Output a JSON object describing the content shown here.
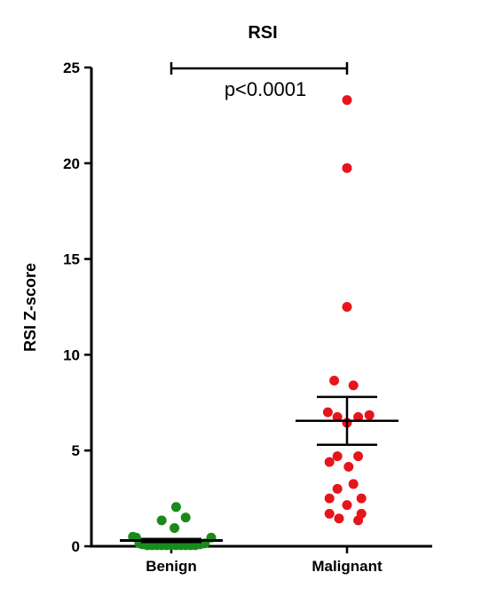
{
  "chart_data": {
    "type": "scatter",
    "title": "RSI",
    "xlabel": "",
    "ylabel": "RSI Z-score",
    "ylim": [
      0,
      25
    ],
    "yticks": [
      0,
      5,
      10,
      15,
      20,
      25
    ],
    "categories": [
      "Benign",
      "Malignant"
    ],
    "grid": false,
    "annotation": "p<0.0001",
    "series": [
      {
        "category": "Benign",
        "color": "#1a8a1a",
        "points": [
          {
            "offset": -0.24,
            "value": 0.5
          },
          {
            "offset": -0.22,
            "value": 0.45
          },
          {
            "offset": -0.2,
            "value": 0.15
          },
          {
            "offset": -0.18,
            "value": 0.1
          },
          {
            "offset": -0.15,
            "value": 0.05
          },
          {
            "offset": -0.12,
            "value": 0.05
          },
          {
            "offset": -0.09,
            "value": 0.05
          },
          {
            "offset": -0.06,
            "value": 0.05
          },
          {
            "offset": -0.03,
            "value": 0.05
          },
          {
            "offset": 0.0,
            "value": 0.05
          },
          {
            "offset": 0.03,
            "value": 0.05
          },
          {
            "offset": 0.06,
            "value": 0.05
          },
          {
            "offset": 0.09,
            "value": 0.05
          },
          {
            "offset": 0.12,
            "value": 0.05
          },
          {
            "offset": 0.15,
            "value": 0.05
          },
          {
            "offset": 0.18,
            "value": 0.1
          },
          {
            "offset": 0.21,
            "value": 0.15
          },
          {
            "offset": 0.25,
            "value": 0.45
          },
          {
            "offset": -0.06,
            "value": 1.35
          },
          {
            "offset": 0.02,
            "value": 0.95
          },
          {
            "offset": 0.03,
            "value": 2.05
          },
          {
            "offset": 0.09,
            "value": 1.5
          }
        ],
        "mean": 0.3,
        "sem_low": 0.22,
        "sem_high": 0.38
      },
      {
        "category": "Malignant",
        "color": "#e8141c",
        "points": [
          {
            "offset": 0.0,
            "value": 23.3
          },
          {
            "offset": 0.0,
            "value": 19.75
          },
          {
            "offset": 0.0,
            "value": 12.5
          },
          {
            "offset": -0.08,
            "value": 8.65
          },
          {
            "offset": 0.04,
            "value": 8.4
          },
          {
            "offset": -0.12,
            "value": 7.0
          },
          {
            "offset": -0.06,
            "value": 6.75
          },
          {
            "offset": 0.0,
            "value": 6.45
          },
          {
            "offset": 0.07,
            "value": 6.75
          },
          {
            "offset": 0.14,
            "value": 6.85
          },
          {
            "offset": -0.06,
            "value": 4.7
          },
          {
            "offset": 0.07,
            "value": 4.7
          },
          {
            "offset": -0.11,
            "value": 4.4
          },
          {
            "offset": 0.01,
            "value": 4.15
          },
          {
            "offset": -0.06,
            "value": 3.0
          },
          {
            "offset": 0.04,
            "value": 3.25
          },
          {
            "offset": -0.11,
            "value": 2.5
          },
          {
            "offset": 0.09,
            "value": 2.5
          },
          {
            "offset": 0.0,
            "value": 2.15
          },
          {
            "offset": -0.11,
            "value": 1.7
          },
          {
            "offset": 0.09,
            "value": 1.7
          },
          {
            "offset": -0.05,
            "value": 1.45
          },
          {
            "offset": 0.07,
            "value": 1.35
          }
        ],
        "mean": 6.55,
        "sem_low": 5.3,
        "sem_high": 7.8
      }
    ]
  }
}
